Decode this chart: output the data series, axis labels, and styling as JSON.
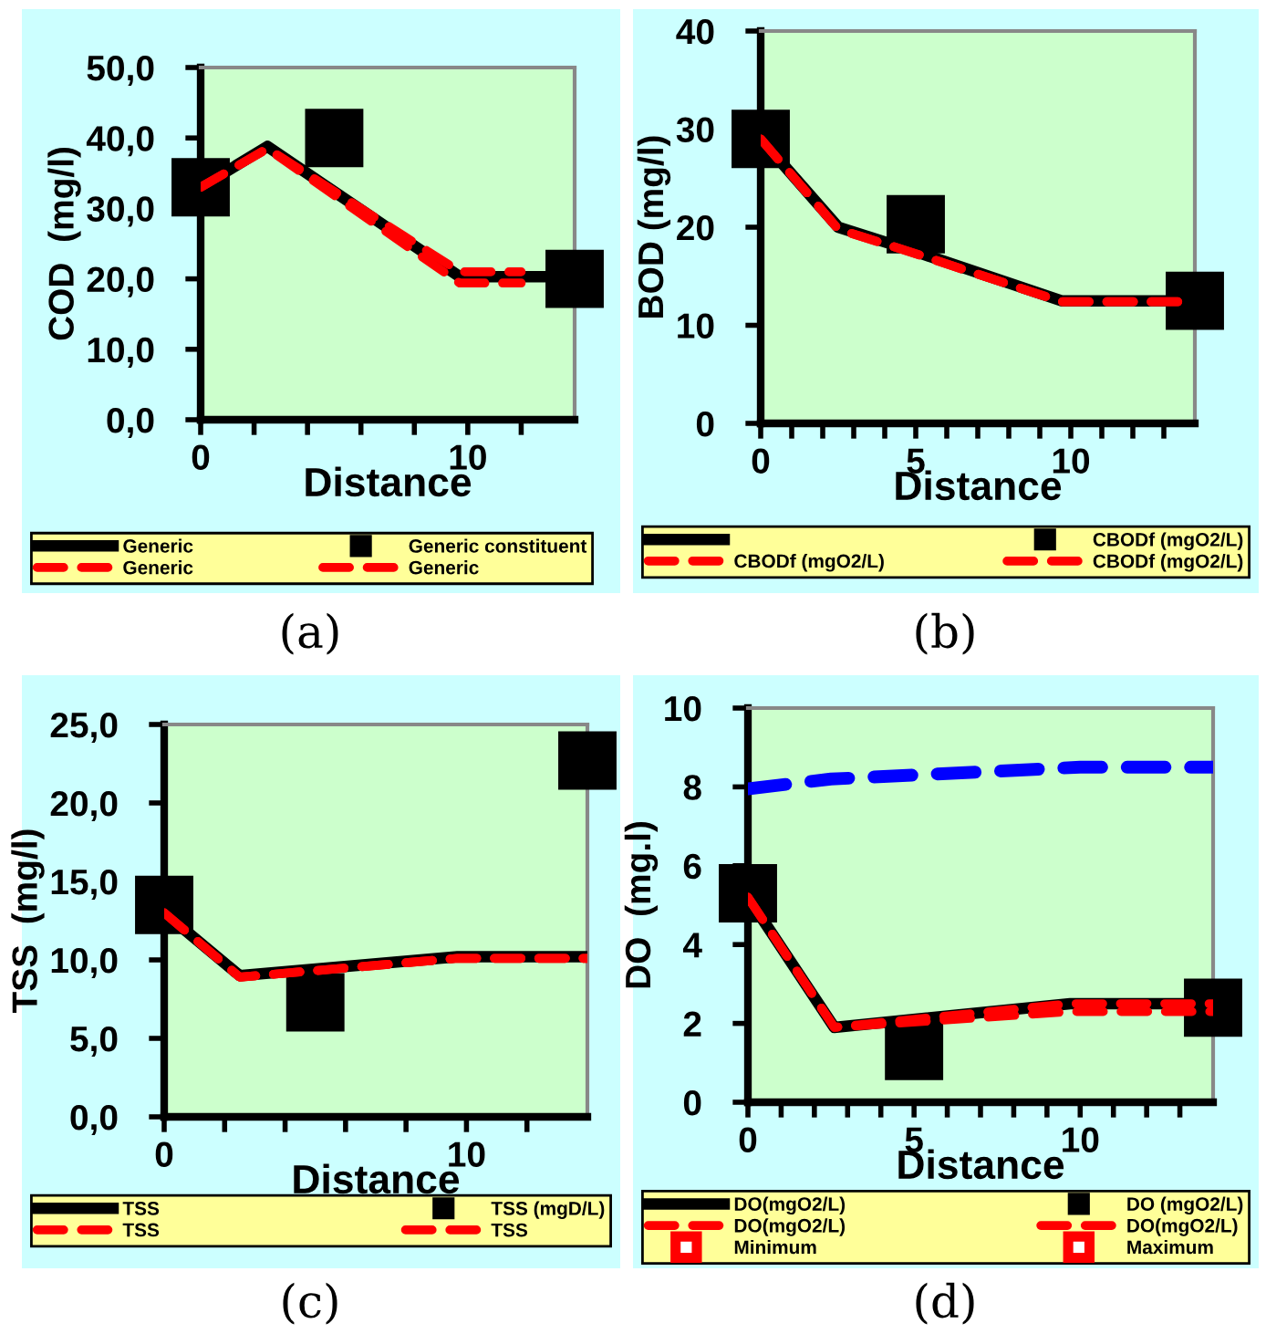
{
  "chart_data": [
    {
      "type": "line",
      "title": "(a)",
      "xlabel": "Distance",
      "ylabel": "COD  (mg/l)",
      "xlim": [
        0,
        14
      ],
      "ylim": [
        0,
        50
      ],
      "xticks": [
        0,
        {
          "value": 2,
          "label": null
        },
        {
          "value": 4,
          "label": null
        },
        {
          "value": 6,
          "label": null
        },
        {
          "value": 8,
          "label": null
        },
        10,
        {
          "value": 12,
          "label": null
        }
      ],
      "yticks": [
        {
          "value": 0,
          "label": "0,0"
        },
        {
          "value": 10,
          "label": "10,0"
        },
        {
          "value": 20,
          "label": "20,0"
        },
        {
          "value": 30,
          "label": "30,0"
        },
        {
          "value": 40,
          "label": "40,0"
        },
        {
          "value": 50,
          "label": "50,0"
        }
      ],
      "legend": "bottom",
      "grid": false,
      "series": [
        {
          "name": "Generic",
          "type": "line",
          "color": "#000000",
          "line_style": "solid",
          "x": [
            0,
            2.5,
            9.7,
            14
          ],
          "values": [
            33,
            38.8,
            20.3,
            20.3
          ]
        },
        {
          "name": "Generic constituent",
          "type": "scatter",
          "color": "#000000",
          "marker": "square",
          "x": [
            0,
            5,
            14
          ],
          "values": [
            33,
            40,
            20
          ]
        },
        {
          "name": "Generic",
          "type": "line",
          "color": "#ff0000",
          "line_style": "dashed",
          "x": [
            0,
            2.5,
            9.7,
            12
          ],
          "values": [
            33,
            38.5,
            19.4,
            19.4
          ]
        },
        {
          "name": "Generic",
          "type": "line",
          "color": "#ff0000",
          "line_style": "dashed",
          "x": [
            0,
            2.5,
            9.7,
            12
          ],
          "values": [
            33,
            38.5,
            21,
            21
          ]
        }
      ]
    },
    {
      "type": "line",
      "title": "(b)",
      "xlabel": "Distance",
      "ylabel": "BOD (mg/l)",
      "xlim": [
        0,
        14
      ],
      "ylim": [
        0,
        40
      ],
      "xticks": [
        0,
        {
          "value": 1,
          "label": null
        },
        {
          "value": 2,
          "label": null
        },
        {
          "value": 3,
          "label": null
        },
        {
          "value": 4,
          "label": null
        },
        5,
        {
          "value": 6,
          "label": null
        },
        {
          "value": 7,
          "label": null
        },
        {
          "value": 8,
          "label": null
        },
        {
          "value": 9,
          "label": null
        },
        10,
        {
          "value": 11,
          "label": null
        },
        {
          "value": 12,
          "label": null
        },
        {
          "value": 13,
          "label": null
        }
      ],
      "yticks": [
        0,
        10,
        20,
        30,
        40
      ],
      "legend": "bottom",
      "grid": false,
      "series": [
        {
          "type": "line",
          "color": "#000000",
          "line_style": "solid",
          "x": [
            0,
            2.5,
            5,
            9.7,
            14
          ],
          "values": [
            29,
            20,
            17.5,
            12.5,
            12.5
          ]
        },
        {
          "name": "CBODf (mgO2/L)",
          "type": "scatter",
          "color": "#000000",
          "marker": "square",
          "x": [
            0,
            5,
            14
          ],
          "values": [
            29,
            20.3,
            12.5
          ]
        },
        {
          "name": "CBODf (mgO2/L)",
          "type": "line",
          "color": "#ff0000",
          "line_style": "dashed",
          "x": [
            0,
            2.5,
            5,
            9.7,
            14
          ],
          "values": [
            29,
            19.8,
            17.3,
            12.4,
            12.4
          ]
        },
        {
          "name": "CBODf (mgO2/L)",
          "type": "line",
          "color": "#ff0000",
          "line_style": "dashed",
          "x": [
            0,
            2.5,
            5,
            9.7,
            14
          ],
          "values": [
            29,
            19.8,
            17.3,
            12.4,
            12.4
          ]
        }
      ]
    },
    {
      "type": "line",
      "title": "(c)",
      "xlabel": "Distance",
      "ylabel": "TSS  (mg/l)",
      "xlim": [
        0,
        14
      ],
      "ylim": [
        0,
        25
      ],
      "xticks": [
        0,
        {
          "value": 2,
          "label": null
        },
        {
          "value": 4,
          "label": null
        },
        {
          "value": 6,
          "label": null
        },
        {
          "value": 8,
          "label": null
        },
        10,
        {
          "value": 12,
          "label": null
        }
      ],
      "yticks": [
        {
          "value": 0,
          "label": "0,0"
        },
        {
          "value": 5,
          "label": "5,0"
        },
        {
          "value": 10,
          "label": "10,0"
        },
        {
          "value": 15,
          "label": "15,0"
        },
        {
          "value": 20,
          "label": "20,0"
        },
        {
          "value": 25,
          "label": "25,0"
        }
      ],
      "legend": "bottom",
      "grid": false,
      "series": [
        {
          "name": "TSS",
          "type": "line",
          "color": "#000000",
          "line_style": "solid",
          "x": [
            0,
            2.5,
            9.7,
            14
          ],
          "values": [
            13,
            9,
            10.2,
            10.2
          ]
        },
        {
          "name": "TSS (mgD/L)",
          "type": "scatter",
          "color": "#000000",
          "marker": "square",
          "x": [
            0,
            5,
            14
          ],
          "values": [
            13.5,
            7.3,
            22.7
          ]
        },
        {
          "name": "TSS",
          "type": "line",
          "color": "#ff0000",
          "line_style": "dashed",
          "x": [
            0,
            2.5,
            9.7,
            14
          ],
          "values": [
            13,
            8.9,
            10.1,
            10.1
          ]
        },
        {
          "name": "TSS",
          "type": "line",
          "color": "#ff0000",
          "line_style": "dashed",
          "x": [
            0,
            2.5,
            9.7,
            14
          ],
          "values": [
            13,
            8.9,
            10.1,
            10.1
          ]
        }
      ]
    },
    {
      "type": "line",
      "title": "(d)",
      "xlabel": "Distance",
      "ylabel": "DO  (mg.l)",
      "xlim": [
        0,
        14
      ],
      "ylim": [
        0,
        10
      ],
      "xticks": [
        0,
        {
          "value": 1,
          "label": null
        },
        {
          "value": 2,
          "label": null
        },
        {
          "value": 3,
          "label": null
        },
        {
          "value": 4,
          "label": null
        },
        5,
        {
          "value": 6,
          "label": null
        },
        {
          "value": 7,
          "label": null
        },
        {
          "value": 8,
          "label": null
        },
        {
          "value": 9,
          "label": null
        },
        10,
        {
          "value": 11,
          "label": null
        },
        {
          "value": 12,
          "label": null
        },
        {
          "value": 13,
          "label": null
        }
      ],
      "yticks": [
        0,
        2,
        4,
        6,
        8,
        10
      ],
      "legend": "bottom",
      "grid": false,
      "series": [
        {
          "name": "DO(mgO2/L)",
          "type": "line",
          "color": "#000000",
          "line_style": "solid",
          "x": [
            0,
            2.6,
            9.7,
            14
          ],
          "values": [
            5.2,
            1.9,
            2.5,
            2.5
          ]
        },
        {
          "name": "DO (mgO2/L)",
          "type": "scatter",
          "color": "#000000",
          "marker": "square",
          "x": [
            0,
            5,
            14
          ],
          "values": [
            5.3,
            1.3,
            2.4
          ]
        },
        {
          "name": "DO(mgO2/L)",
          "type": "line",
          "color": "#ff0000",
          "line_style": "dashed",
          "x": [
            0,
            2.6,
            9.7,
            14
          ],
          "values": [
            5.2,
            1.9,
            2.3,
            2.3
          ]
        },
        {
          "name": "DO(mgO2/L)",
          "type": "line",
          "color": "#ff0000",
          "line_style": "dashed",
          "x": [
            0,
            2.6,
            9.7,
            14
          ],
          "values": [
            5.2,
            1.9,
            2.5,
            2.5
          ]
        },
        {
          "name": "Minimum",
          "type": "scatter",
          "color": "#ff0000",
          "marker": "square"
        },
        {
          "name": "Maximum",
          "type": "scatter",
          "color": "#ff0000",
          "marker": "square"
        },
        {
          "type": "line",
          "color": "#0000ff",
          "line_style": "dashed",
          "x": [
            0,
            2.5,
            5,
            7.5,
            10,
            14
          ],
          "values": [
            7.95,
            8.2,
            8.3,
            8.4,
            8.5,
            8.5
          ]
        }
      ]
    }
  ]
}
